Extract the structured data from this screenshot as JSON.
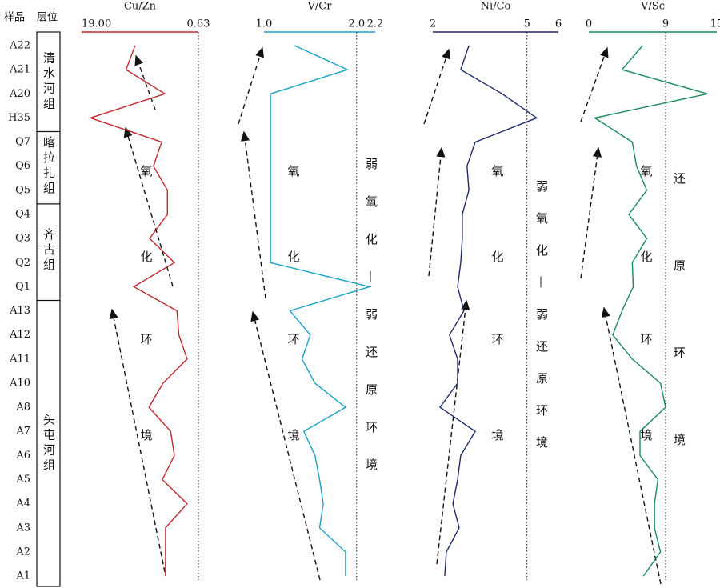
{
  "header": {
    "sample": "样品",
    "formation": "层位"
  },
  "samples": [
    "A22",
    "A21",
    "A20",
    "H35",
    "Q7",
    "Q6",
    "Q5",
    "Q4",
    "Q3",
    "Q2",
    "Q1",
    "A13",
    "A12",
    "A11",
    "A10",
    "A8",
    "A7",
    "A6",
    "A5",
    "A4",
    "A3",
    "A2",
    "A1"
  ],
  "formations": [
    "清水河组",
    "喀拉扎组",
    "齐古组",
    "头屯河组"
  ],
  "chart_data": [
    {
      "type": "line",
      "title": "Cu/Zn",
      "color": "#c0272d",
      "xlim": [
        19,
        0.63
      ],
      "xticks": [
        {
          "value": 19,
          "label": "19.00"
        },
        0.63
      ],
      "values": [
        10.6,
        12.0,
        5.9,
        17.6,
        6.4,
        7.7,
        5.5,
        5.5,
        8.3,
        4.4,
        10.8,
        4.0,
        3.7,
        2.4,
        6.2,
        8.4,
        5.0,
        4.4,
        6.3,
        2.4,
        5.8,
        5.8,
        5.8
      ],
      "annotations": [
        "氧",
        "化",
        "环",
        "境"
      ]
    },
    {
      "type": "line",
      "title": "V/Cr",
      "color": "#1aa3c8",
      "xlim": [
        1,
        2.2
      ],
      "xticks": [
        {
          "value": 1,
          "label": "1.0"
        },
        {
          "value": 2,
          "label": "2.0"
        },
        2.2
      ],
      "values": [
        1.33,
        1.9,
        1.07,
        1.07,
        1.07,
        1.07,
        1.07,
        1.07,
        1.07,
        1.07,
        2.14,
        1.28,
        1.5,
        1.41,
        1.55,
        1.88,
        1.43,
        1.55,
        1.6,
        1.64,
        1.6,
        1.88,
        1.88
      ],
      "annotations": [
        "氧",
        "化",
        "环",
        "境"
      ],
      "side_note": "弱氧化—弱还原环境"
    },
    {
      "type": "line",
      "title": "Ni/Co",
      "color": "#1f2a6b",
      "xlim": [
        2,
        6
      ],
      "xticks": [
        2,
        5,
        6
      ],
      "values": [
        3.15,
        2.89,
        4.21,
        5.31,
        3.35,
        3.09,
        3.15,
        2.94,
        2.94,
        2.89,
        2.79,
        2.99,
        2.53,
        2.79,
        2.79,
        2.23,
        3.35,
        2.89,
        2.79,
        2.64,
        2.84,
        2.43,
        2.38
      ],
      "annotations": [
        "氧",
        "化",
        "环",
        "境"
      ],
      "side_note": "弱氧化—弱还原环境"
    },
    {
      "type": "line",
      "title": "V/Sc",
      "color": "#1a8a57",
      "xlim": [
        0,
        15
      ],
      "xticks": [
        0,
        9,
        15
      ],
      "values": [
        6.3,
        3.9,
        13.9,
        0.7,
        5.1,
        5.6,
        6.8,
        4.7,
        6.8,
        5.1,
        5.2,
        3.9,
        2.8,
        5.1,
        8.4,
        9.0,
        6.0,
        6.0,
        8.1,
        7.7,
        7.7,
        8.4,
        6.4
      ],
      "annotations": [
        "氧",
        "化",
        "环",
        "境"
      ],
      "side_note": "还原环境"
    }
  ]
}
